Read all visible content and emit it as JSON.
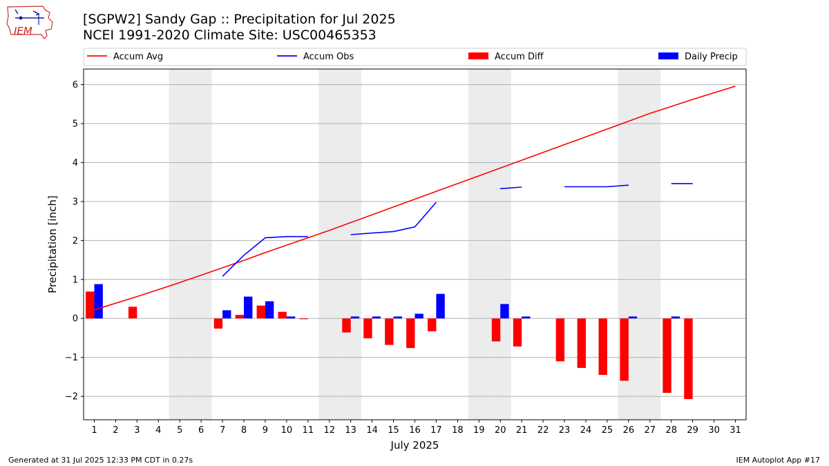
{
  "title": "[SGPW2] Sandy Gap :: Precipitation for Jul 2025",
  "subtitle": "NCEI 1991-2020 Climate Site: USC00465353",
  "logo_text": "IEM",
  "footer_left": "Generated at 31 Jul 2025 12:33 PM CDT in 0.27s",
  "footer_right": "IEM Autoplot App #17",
  "colors": {
    "avg": "#ff0000",
    "obs": "#0000ff",
    "diff": "#ff0000",
    "daily": "#0000ff",
    "weekend": "#ececec",
    "grid": "#b0b0b0"
  },
  "chart_data": {
    "type": "bar",
    "xlabel": "July 2025",
    "ylabel": "Precipitation [inch]",
    "ylim": [
      -2.6,
      6.4
    ],
    "xlim": [
      0.5,
      31.5
    ],
    "yticks": [
      -2,
      -1,
      0,
      1,
      2,
      3,
      4,
      5,
      6
    ],
    "ytick_labels": [
      "−2",
      "−1",
      "0",
      "1",
      "2",
      "3",
      "4",
      "5",
      "6"
    ],
    "categories": [
      "1",
      "2",
      "3",
      "4",
      "5",
      "6",
      "7",
      "8",
      "9",
      "10",
      "11",
      "12",
      "13",
      "14",
      "15",
      "16",
      "17",
      "18",
      "19",
      "20",
      "21",
      "22",
      "23",
      "24",
      "25",
      "26",
      "27",
      "28",
      "29",
      "30",
      "31"
    ],
    "grid": "horizontal",
    "legend_position": "top",
    "weekend_days": [
      5,
      6,
      12,
      13,
      19,
      20,
      26,
      27
    ],
    "series": [
      {
        "name": "Accum Avg",
        "kind": "line",
        "values": [
          0.22,
          0.39,
          0.56,
          0.74,
          0.92,
          1.11,
          1.3,
          1.49,
          1.69,
          1.88,
          2.07,
          2.26,
          2.46,
          2.66,
          2.86,
          3.06,
          3.26,
          3.46,
          3.66,
          3.86,
          4.06,
          4.26,
          4.46,
          4.66,
          4.86,
          5.06,
          5.26,
          5.44,
          5.62,
          5.79,
          5.96
        ]
      },
      {
        "name": "Accum Obs",
        "kind": "line",
        "values": [
          null,
          null,
          null,
          null,
          null,
          null,
          1.08,
          1.62,
          2.07,
          2.1,
          2.1,
          null,
          2.15,
          2.19,
          2.23,
          2.35,
          2.98,
          null,
          null,
          3.33,
          3.37,
          null,
          3.38,
          3.38,
          3.38,
          3.42,
          null,
          3.46,
          3.46,
          null,
          null
        ]
      },
      {
        "name": "Accum Diff",
        "kind": "bar",
        "values": [
          0.69,
          null,
          0.3,
          null,
          null,
          null,
          -0.26,
          0.09,
          0.33,
          0.17,
          -0.02,
          null,
          -0.36,
          -0.51,
          -0.68,
          -0.76,
          -0.33,
          null,
          null,
          -0.59,
          -0.72,
          null,
          -1.1,
          -1.27,
          -1.45,
          -1.6,
          null,
          -1.91,
          -2.07,
          null,
          null
        ]
      },
      {
        "name": "Daily Precip",
        "kind": "bar",
        "values": [
          0.88,
          null,
          null,
          null,
          null,
          null,
          0.21,
          0.56,
          0.44,
          0.05,
          null,
          null,
          0.05,
          0.05,
          0.05,
          0.12,
          0.63,
          null,
          null,
          0.37,
          0.05,
          null,
          null,
          null,
          null,
          0.05,
          null,
          0.05,
          null,
          null,
          null
        ]
      }
    ]
  }
}
